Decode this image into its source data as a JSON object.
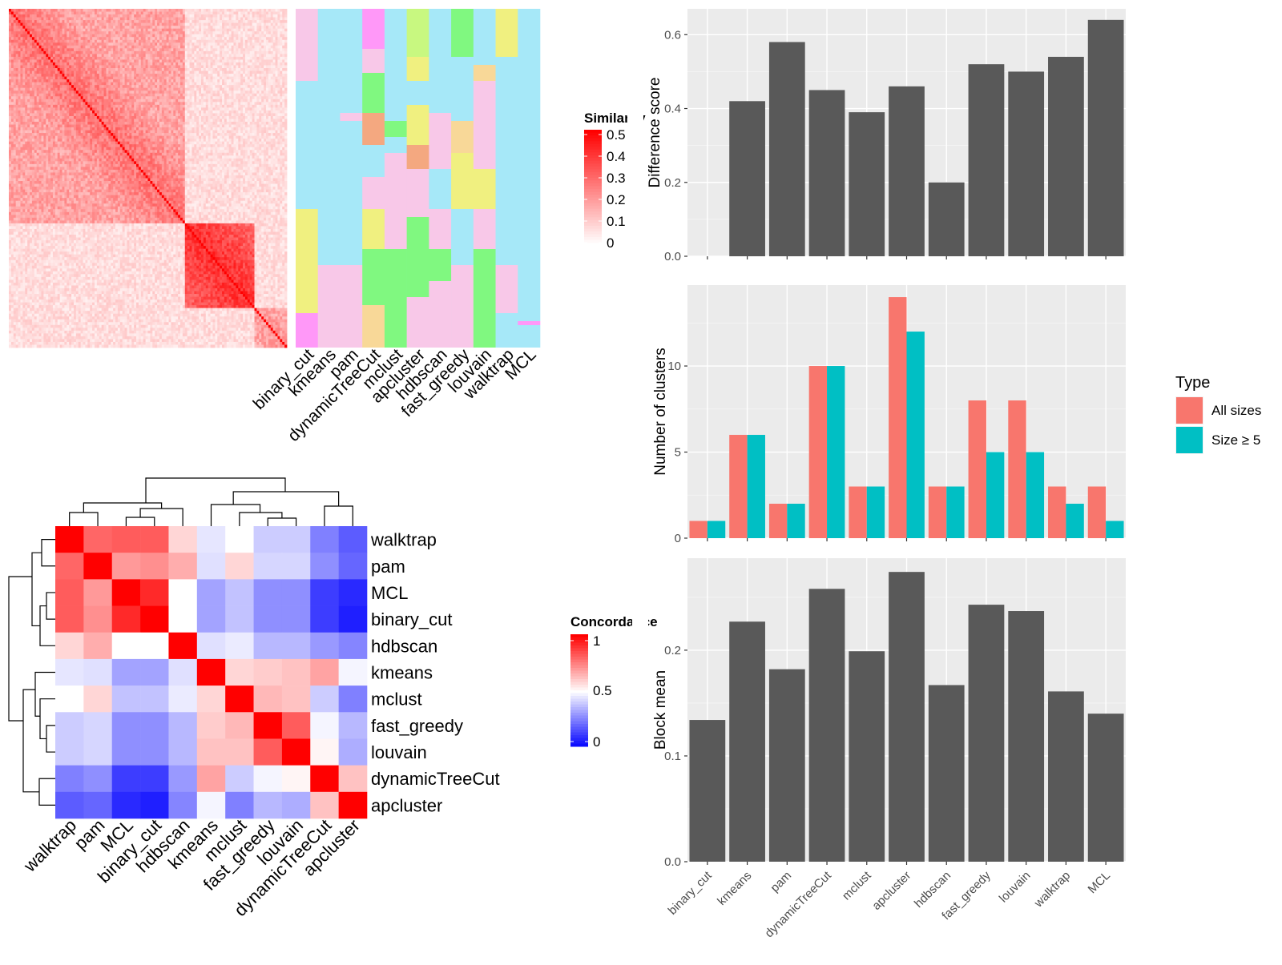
{
  "methods": [
    "binary_cut",
    "kmeans",
    "pam",
    "dynamicTreeCut",
    "mclust",
    "apcluster",
    "hdbscan",
    "fast_greedy",
    "louvain",
    "walktrap",
    "MCL"
  ],
  "similarity_legend": {
    "title": "Similarity",
    "ticks": [
      "0.5",
      "0.4",
      "0.3",
      "0.2",
      "0.1",
      "0"
    ],
    "low_color": "#ffffff",
    "high_color": "#ff0000"
  },
  "concordance_legend": {
    "title": "Concordance",
    "ticks": [
      "1",
      "0.5",
      "0"
    ],
    "low_color": "#0000ff",
    "mid_color": "#ffffff",
    "high_color": "#ff0000"
  },
  "cluster_palette": [
    "#a6e8f8",
    "#f8c8e8",
    "#80f880",
    "#f0f080",
    "#ff98f8",
    "#f8d898",
    "#c8f880",
    "#f4a880",
    "#f080c0",
    "#d0f0f8"
  ],
  "chart_data": [
    {
      "type": "heatmap",
      "name": "similarity",
      "size": 120,
      "blocks": [
        [
          0,
          76
        ],
        [
          76,
          106
        ],
        [
          106,
          120
        ]
      ],
      "value_range": [
        0,
        0.5
      ]
    },
    {
      "type": "heatmap",
      "name": "cluster-assignment",
      "columns": [
        "binary_cut",
        "kmeans",
        "pam",
        "dynamicTreeCut",
        "mclust",
        "apcluster",
        "hdbscan",
        "fast_greedy",
        "louvain",
        "walktrap",
        "MCL"
      ]
    },
    {
      "type": "heatmap",
      "name": "concordance",
      "rows": [
        "walktrap",
        "pam",
        "MCL",
        "binary_cut",
        "hdbscan",
        "kmeans",
        "mclust",
        "fast_greedy",
        "louvain",
        "dynamicTreeCut",
        "apcluster"
      ],
      "columns": [
        "walktrap",
        "pam",
        "MCL",
        "binary_cut",
        "hdbscan",
        "kmeans",
        "mclust",
        "fast_greedy",
        "louvain",
        "dynamicTreeCut",
        "apcluster"
      ],
      "values": [
        [
          1.0,
          0.8,
          0.82,
          0.82,
          0.58,
          0.45,
          0.5,
          0.4,
          0.4,
          0.25,
          0.18
        ],
        [
          0.8,
          1.0,
          0.7,
          0.72,
          0.66,
          0.44,
          0.58,
          0.42,
          0.42,
          0.28,
          0.2
        ],
        [
          0.82,
          0.7,
          1.0,
          0.92,
          0.5,
          0.32,
          0.38,
          0.28,
          0.28,
          0.12,
          0.08
        ],
        [
          0.82,
          0.72,
          0.92,
          1.0,
          0.5,
          0.32,
          0.38,
          0.28,
          0.28,
          0.12,
          0.06
        ],
        [
          0.58,
          0.66,
          0.5,
          0.5,
          1.0,
          0.44,
          0.46,
          0.36,
          0.36,
          0.3,
          0.26
        ],
        [
          0.45,
          0.44,
          0.32,
          0.32,
          0.44,
          1.0,
          0.58,
          0.6,
          0.62,
          0.68,
          0.48
        ],
        [
          0.5,
          0.58,
          0.38,
          0.38,
          0.46,
          0.58,
          1.0,
          0.64,
          0.62,
          0.4,
          0.25
        ],
        [
          0.4,
          0.42,
          0.28,
          0.28,
          0.36,
          0.6,
          0.64,
          1.0,
          0.82,
          0.48,
          0.36
        ],
        [
          0.4,
          0.42,
          0.28,
          0.28,
          0.36,
          0.62,
          0.62,
          0.82,
          1.0,
          0.52,
          0.34
        ],
        [
          0.25,
          0.28,
          0.12,
          0.12,
          0.3,
          0.68,
          0.4,
          0.48,
          0.52,
          1.0,
          0.62
        ],
        [
          0.18,
          0.2,
          0.08,
          0.06,
          0.26,
          0.48,
          0.25,
          0.36,
          0.34,
          0.62,
          1.0
        ]
      ],
      "value_range": [
        0,
        1
      ]
    },
    {
      "type": "bar",
      "name": "difference-score",
      "categories": [
        "binary_cut",
        "kmeans",
        "pam",
        "dynamicTreeCut",
        "mclust",
        "apcluster",
        "hdbscan",
        "fast_greedy",
        "louvain",
        "walktrap",
        "MCL"
      ],
      "values": [
        0,
        0.42,
        0.58,
        0.45,
        0.39,
        0.46,
        0.2,
        0.52,
        0.5,
        0.54,
        0.64
      ],
      "ylabel": "Difference score",
      "ylim": [
        0,
        0.67
      ],
      "yticks": [
        "0.0",
        "0.2",
        "0.4",
        "0.6"
      ],
      "color": "#595959"
    },
    {
      "type": "bar",
      "name": "number-of-clusters",
      "categories": [
        "binary_cut",
        "kmeans",
        "pam",
        "dynamicTreeCut",
        "mclust",
        "apcluster",
        "hdbscan",
        "fast_greedy",
        "louvain",
        "walktrap",
        "MCL"
      ],
      "series": [
        {
          "name": "All sizes",
          "values": [
            1,
            6,
            2,
            10,
            3,
            14,
            3,
            8,
            8,
            3,
            3
          ],
          "color": "#f8766d"
        },
        {
          "name": "Size ≥ 5",
          "values": [
            1,
            6,
            2,
            10,
            3,
            12,
            3,
            5,
            5,
            2,
            1
          ],
          "color": "#00bfc4"
        }
      ],
      "ylabel": "Number of clusters",
      "ylim": [
        0,
        14.7
      ],
      "yticks": [
        "0",
        "5",
        "10"
      ],
      "legend": {
        "title": "Type",
        "position": "right"
      }
    },
    {
      "type": "bar",
      "name": "block-mean",
      "categories": [
        "binary_cut",
        "kmeans",
        "pam",
        "dynamicTreeCut",
        "mclust",
        "apcluster",
        "hdbscan",
        "fast_greedy",
        "louvain",
        "walktrap",
        "MCL"
      ],
      "values": [
        0.134,
        0.227,
        0.182,
        0.258,
        0.199,
        0.274,
        0.167,
        0.243,
        0.237,
        0.161,
        0.14
      ],
      "ylabel": "Block mean",
      "ylim": [
        0,
        0.287
      ],
      "yticks": [
        "0.0",
        "0.1",
        "0.2"
      ],
      "color": "#595959"
    }
  ]
}
